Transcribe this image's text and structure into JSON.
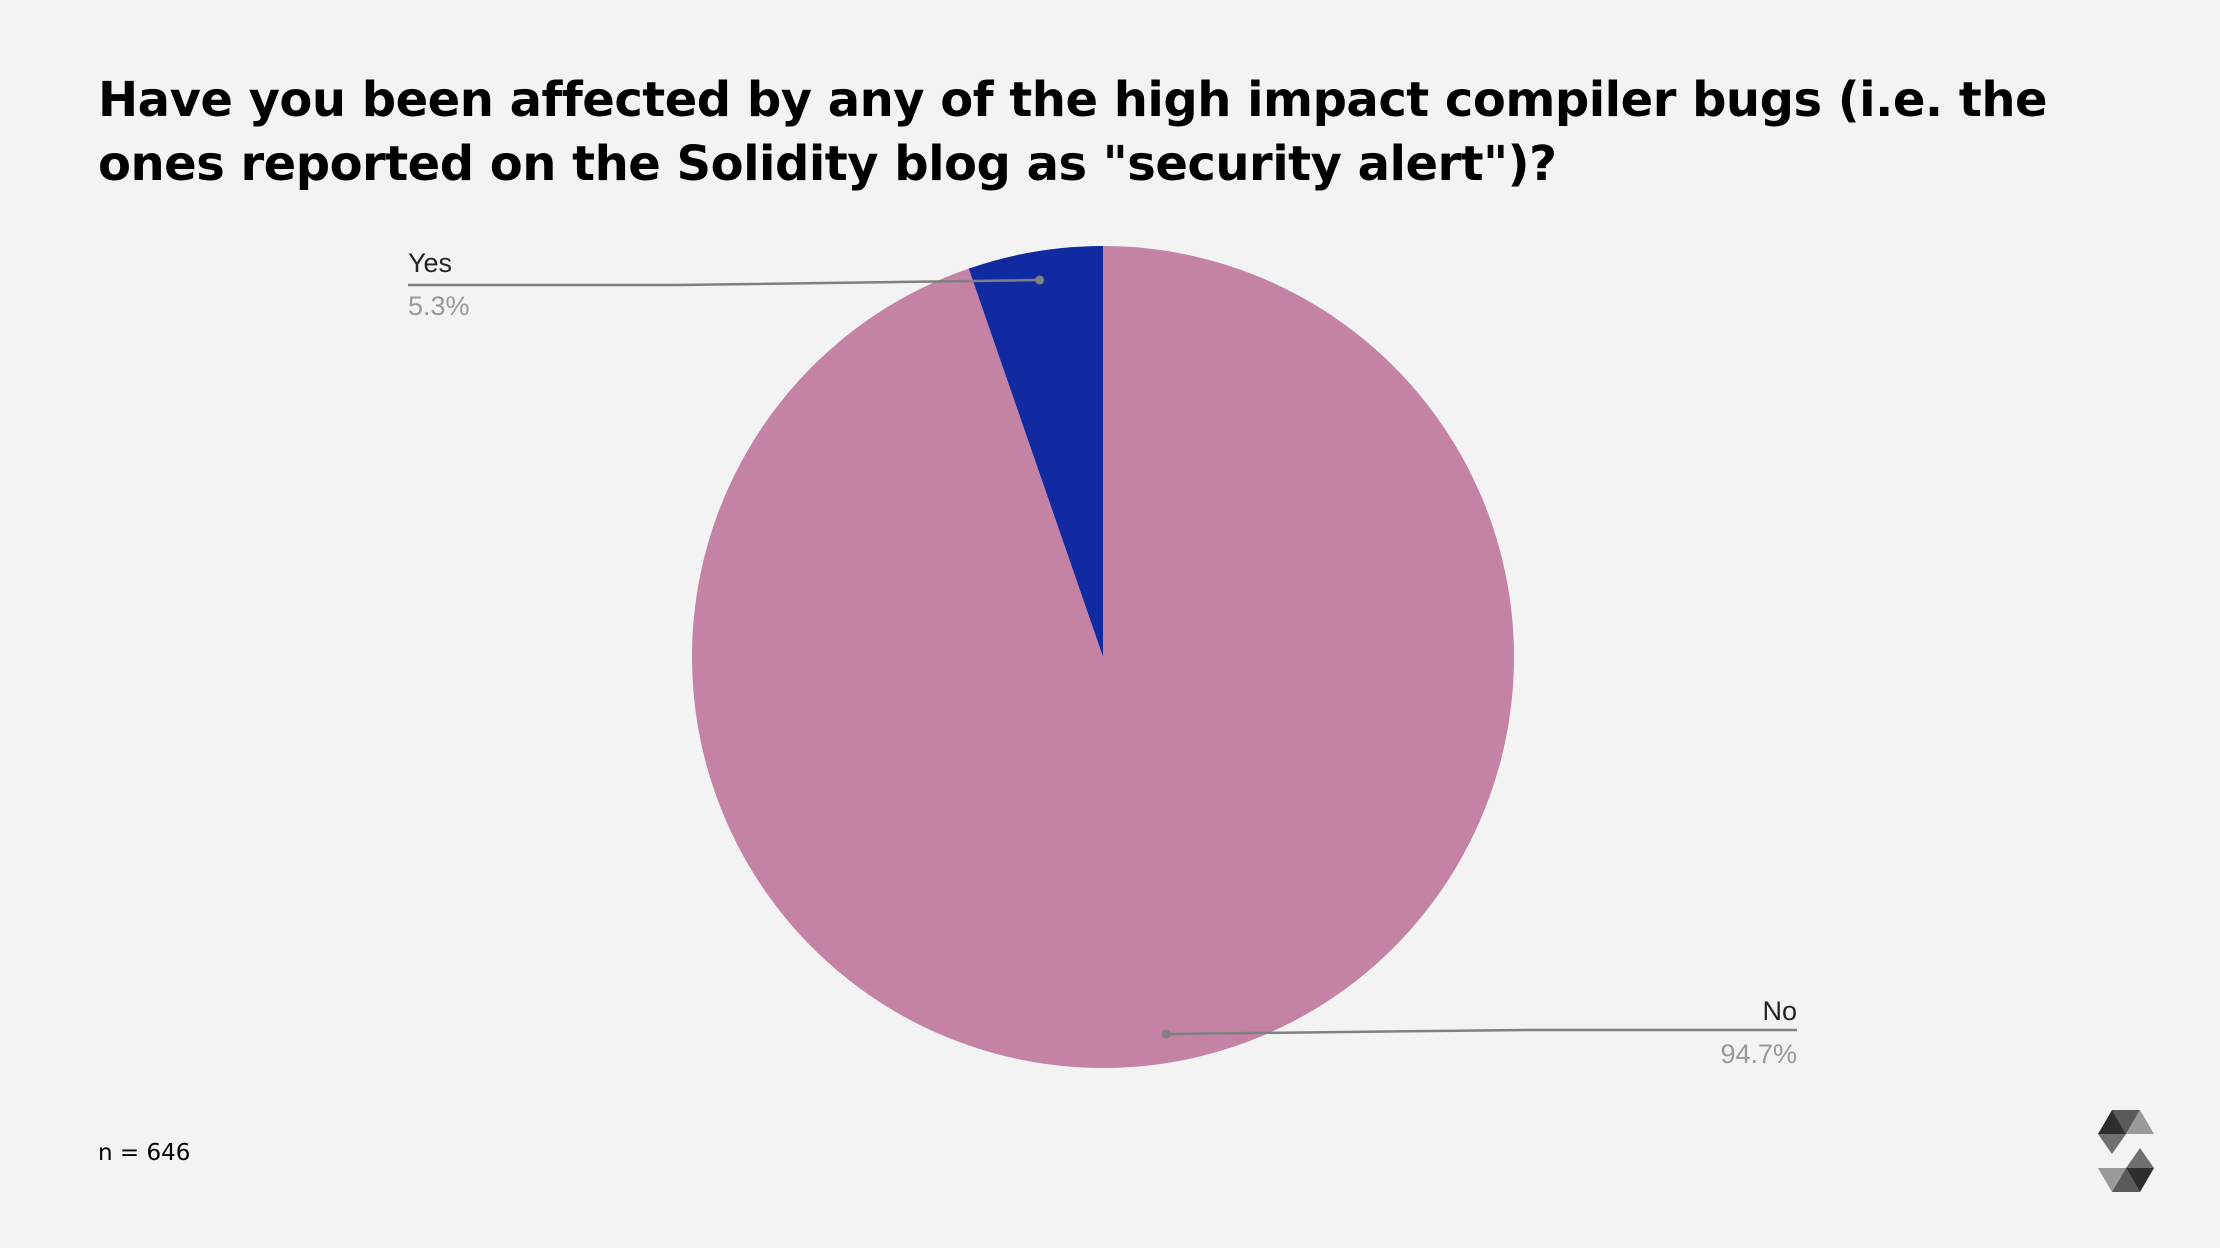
{
  "title": "Have you been affected by any of the high impact compiler bugs (i.e. the ones reported on the Solidity blog as \"security alert\")?",
  "sample_size_label": "n = 646",
  "chart_data": {
    "type": "pie",
    "title": "Have you been affected by any of the high impact compiler bugs (i.e. the ones reported on the Solidity blog as \"security alert\")?",
    "slices": [
      {
        "label": "Yes",
        "value": 5.3,
        "display": "5.3%",
        "color": "#112aa2"
      },
      {
        "label": "No",
        "value": 94.7,
        "display": "94.7%",
        "color": "#c482a5"
      }
    ],
    "start_angle_deg": 0,
    "direction": "counterclockwise",
    "label_style": "outside-with-leader-lines"
  },
  "colors": {
    "background": "#f3f3f3",
    "leader_line": "#808080",
    "label_text": "#222222",
    "percent_text": "#999999"
  },
  "logo": "solidity-logo"
}
